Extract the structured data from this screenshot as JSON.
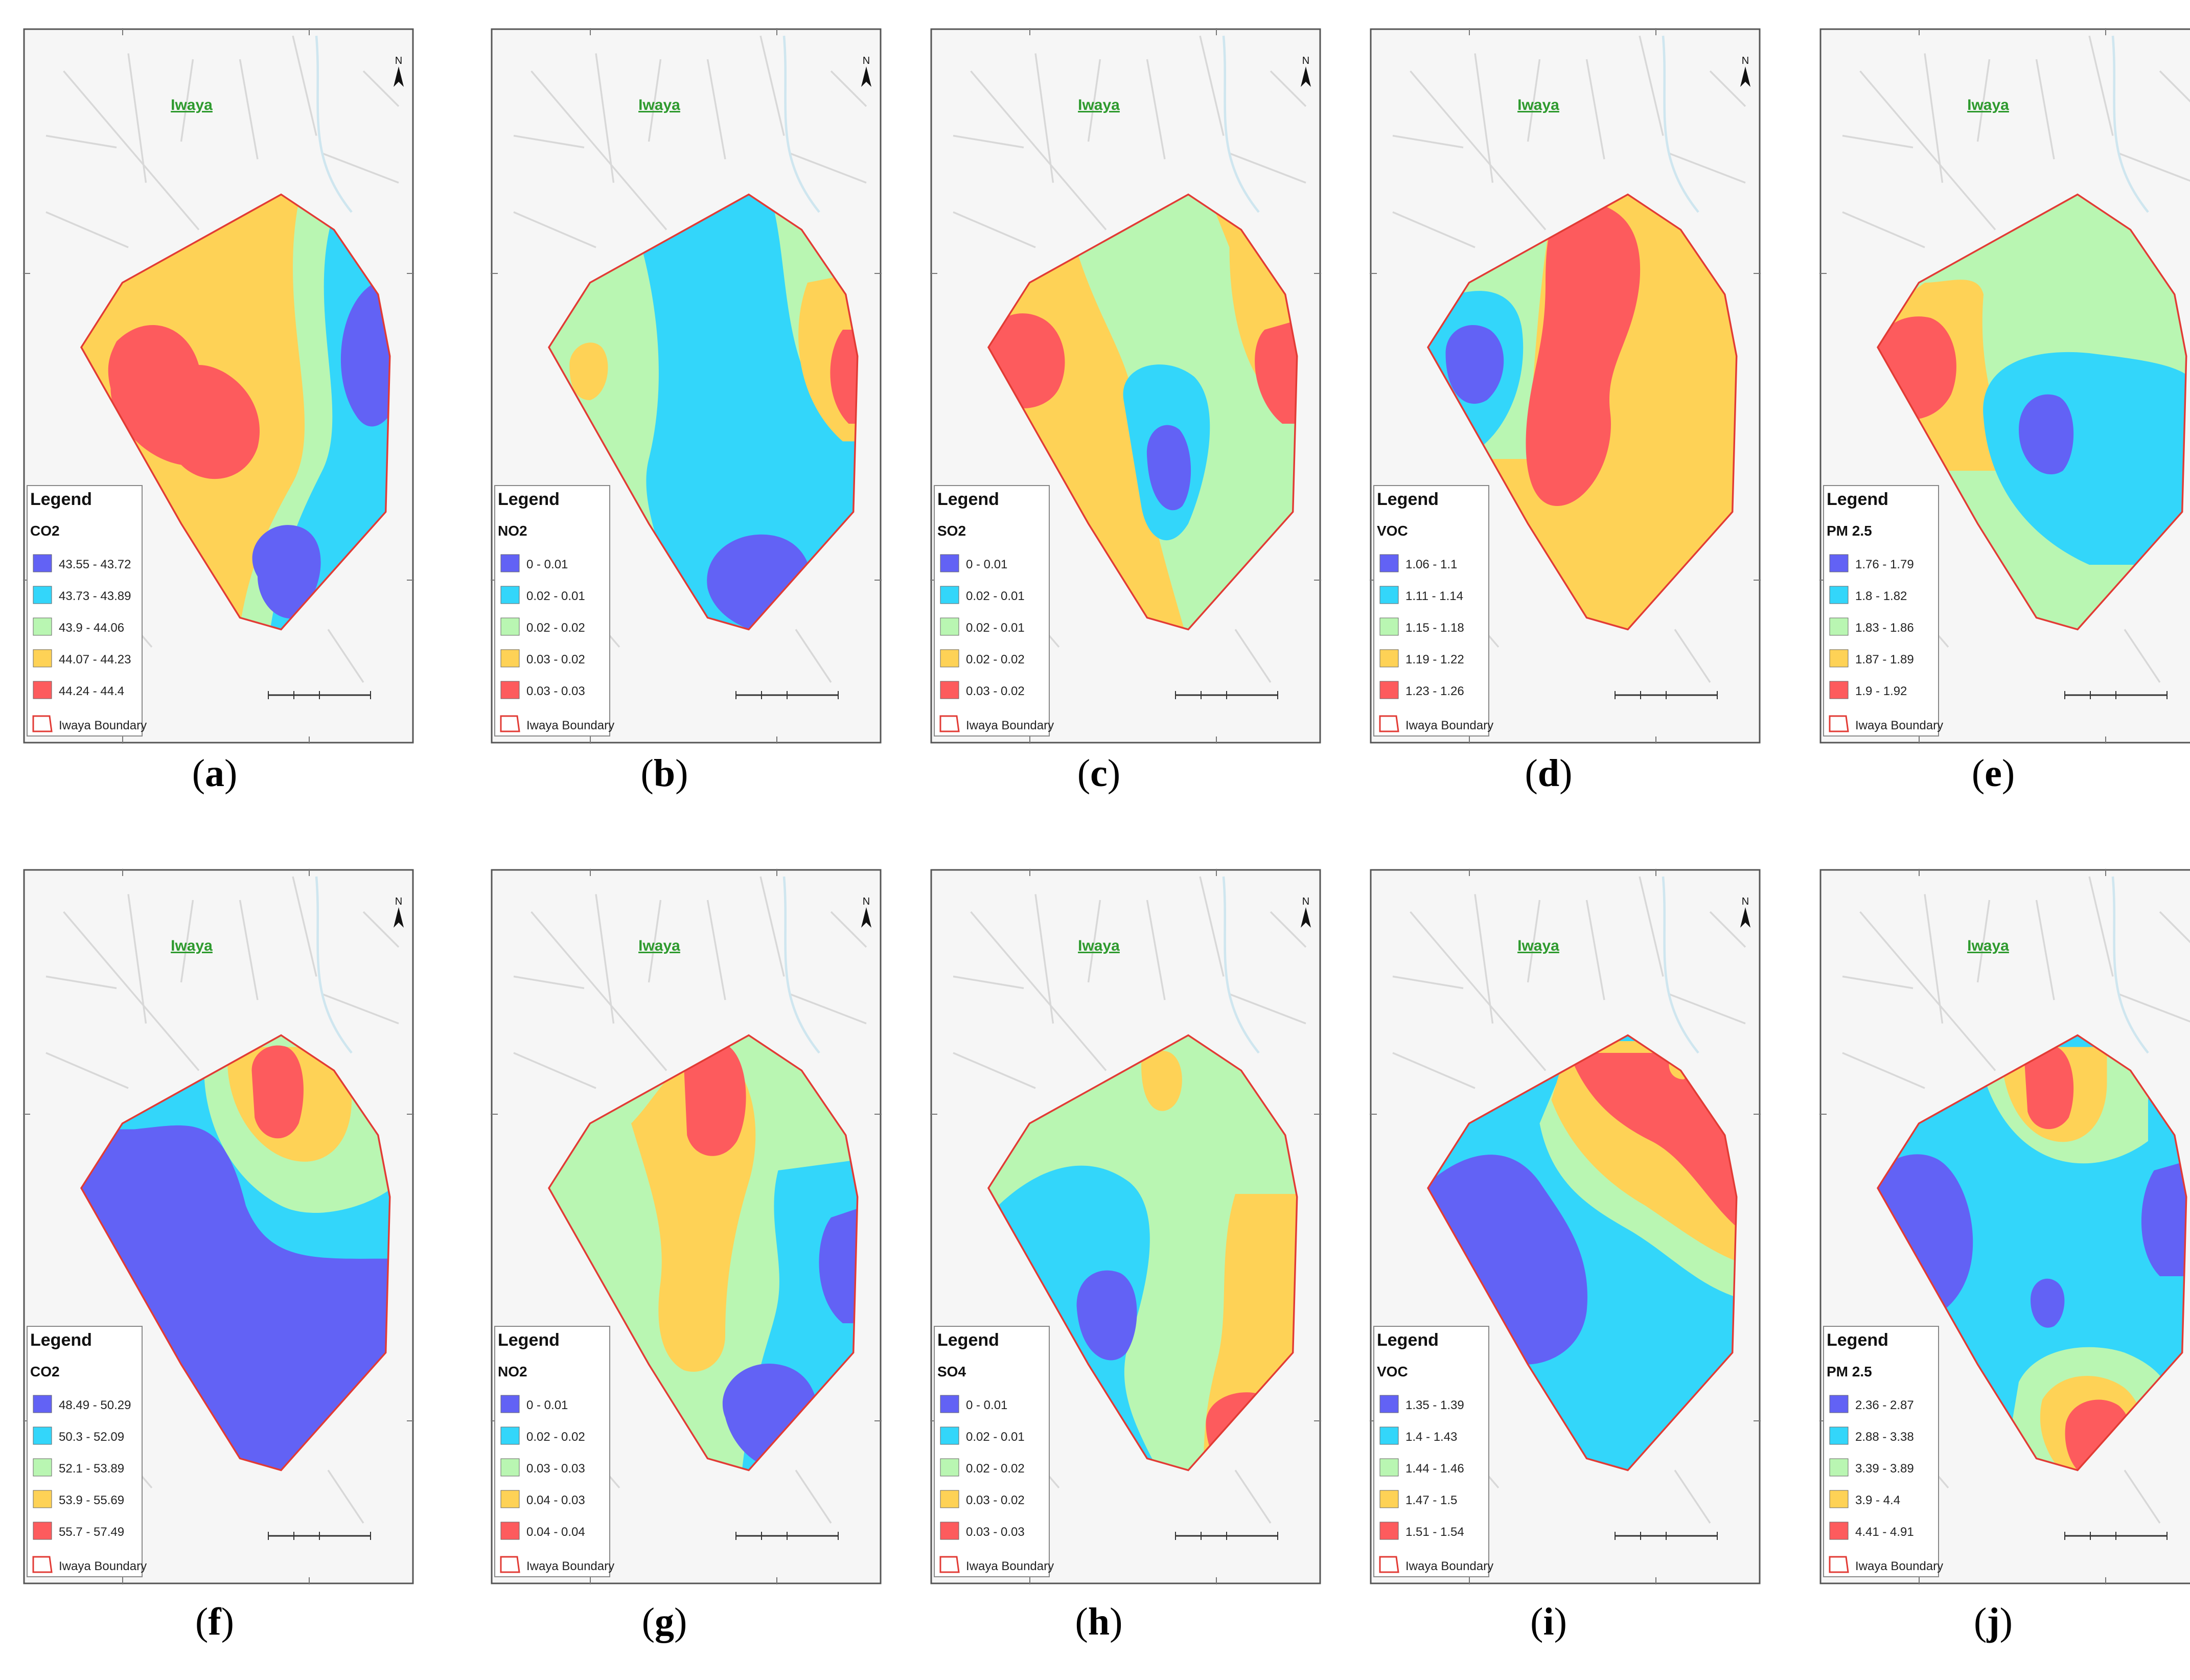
{
  "colors": {
    "class1": "#6262f5",
    "class2": "#33d6fa",
    "class3": "#b9f6b2",
    "class4": "#fed256",
    "class5": "#fd5b5d",
    "boundary": "#e23b35",
    "place_label": "#2e9a2e"
  },
  "common": {
    "place": "Iwaya",
    "legend_title": "Legend",
    "boundary_label": "Iwaya Boundary",
    "north": "N"
  },
  "panels": [
    {
      "letter": "a",
      "pollutant": "CO2",
      "classes": [
        "43.55 - 43.72",
        "43.73 - 43.89",
        "43.9 - 44.06",
        "44.07 - 44.23",
        "44.24 - 44.4"
      ]
    },
    {
      "letter": "b",
      "pollutant": "NO2",
      "classes": [
        "0 - 0.01",
        "0.02 - 0.01",
        "0.02 - 0.02",
        "0.03 - 0.02",
        "0.03 - 0.03"
      ]
    },
    {
      "letter": "c",
      "pollutant": "SO2",
      "classes": [
        "0 - 0.01",
        "0.02 - 0.01",
        "0.02 - 0.01",
        "0.02 - 0.02",
        "0.03 - 0.02"
      ]
    },
    {
      "letter": "d",
      "pollutant": "VOC",
      "classes": [
        "1.06 - 1.1",
        "1.11 - 1.14",
        "1.15 - 1.18",
        "1.19 - 1.22",
        "1.23 - 1.26"
      ]
    },
    {
      "letter": "e",
      "pollutant": "PM 2.5",
      "classes": [
        "1.76 - 1.79",
        "1.8 - 1.82",
        "1.83 - 1.86",
        "1.87 - 1.89",
        "1.9 - 1.92"
      ]
    },
    {
      "letter": "f",
      "pollutant": "CO2",
      "classes": [
        "48.49 - 50.29",
        "50.3 - 52.09",
        "52.1 - 53.89",
        "53.9 - 55.69",
        "55.7 - 57.49"
      ]
    },
    {
      "letter": "g",
      "pollutant": "NO2",
      "classes": [
        "0 - 0.01",
        "0.02 - 0.02",
        "0.03 - 0.03",
        "0.04 - 0.03",
        "0.04 - 0.04"
      ]
    },
    {
      "letter": "h",
      "pollutant": "SO4",
      "classes": [
        "0 - 0.01",
        "0.02 - 0.01",
        "0.02 - 0.02",
        "0.03 - 0.02",
        "0.03 - 0.03"
      ]
    },
    {
      "letter": "i",
      "pollutant": "VOC",
      "classes": [
        "1.35 - 1.39",
        "1.4 - 1.43",
        "1.44 - 1.46",
        "1.47 - 1.5",
        "1.51 - 1.54"
      ]
    },
    {
      "letter": "j",
      "pollutant": "PM 2.5",
      "classes": [
        "2.36 - 2.87",
        "2.88 - 3.38",
        "3.39 - 3.89",
        "3.9 - 4.4",
        "4.41 - 4.91"
      ]
    }
  ]
}
